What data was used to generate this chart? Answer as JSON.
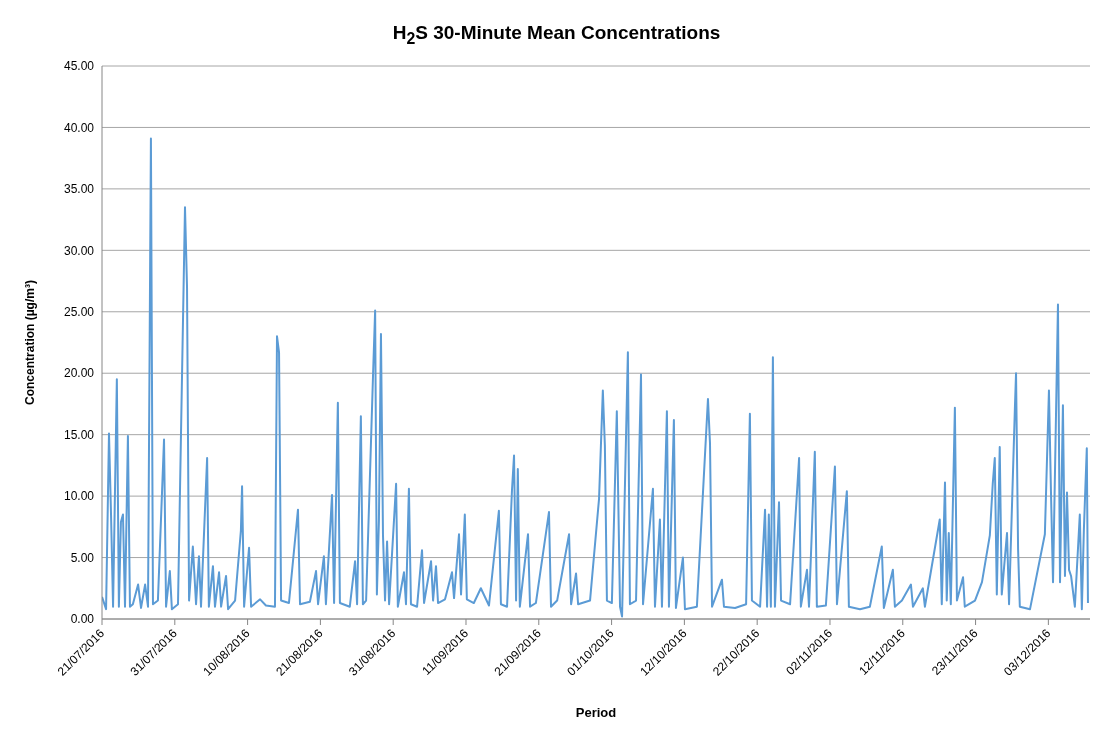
{
  "chart_data": {
    "type": "line",
    "title": "H$_{2}$S 30-Minute Mean Concentrations",
    "xlabel": "Period",
    "ylabel": "Concentration (µg/m³)",
    "x": [
      "2016-07-21T00:00",
      "2016-07-21T14:00",
      "2016-07-22T00:00",
      "2016-07-22T07:00",
      "2016-07-22T14:00",
      "2016-07-23T03:00",
      "2016-07-23T10:00",
      "2016-07-23T17:00",
      "2016-07-24T00:00",
      "2016-07-24T07:00",
      "2016-07-24T17:00",
      "2016-07-25T00:00",
      "2016-07-25T10:00",
      "2016-07-26T04:00",
      "2016-07-26T14:00",
      "2016-07-27T04:00",
      "2016-07-27T14:00",
      "2016-07-28T00:00",
      "2016-07-28T07:00",
      "2016-07-29T00:00",
      "2016-07-29T21:00",
      "2016-07-30T04:00",
      "2016-07-30T17:00",
      "2016-07-31T00:00",
      "2016-07-31T21:00",
      "2016-08-01T21:00",
      "2016-08-02T04:00",
      "2016-08-02T11:00",
      "2016-08-03T00:00",
      "2016-08-03T11:00",
      "2016-08-03T21:00",
      "2016-08-04T04:00",
      "2016-08-05T01:00",
      "2016-08-05T07:00",
      "2016-08-05T21:00",
      "2016-08-06T04:00",
      "2016-08-06T18:00",
      "2016-08-07T01:00",
      "2016-08-07T18:00",
      "2016-08-08T01:00",
      "2016-08-09T01:00",
      "2016-08-09T21:00",
      "2016-08-10T01:00",
      "2016-08-10T08:00",
      "2016-08-11T01:00",
      "2016-08-11T08:00",
      "2016-08-12T15:00",
      "2016-08-13T11:00",
      "2016-08-14T18:00",
      "2016-08-15T01:00",
      "2016-08-15T08:00",
      "2016-08-15T15:00",
      "2016-08-16T18:00",
      "2016-08-18T01:00",
      "2016-08-18T08:00",
      "2016-08-19T18:00",
      "2016-08-20T15:00",
      "2016-08-20T22:00",
      "2016-08-21T18:00",
      "2016-08-22T01:00",
      "2016-08-22T22:00",
      "2016-08-23T05:00",
      "2016-08-23T18:00",
      "2016-08-24T01:00",
      "2016-08-25T11:00",
      "2016-08-26T05:00",
      "2016-08-26T12:00",
      "2016-08-27T01:00",
      "2016-08-27T08:00",
      "2016-08-27T19:00",
      "2016-08-28T19:00",
      "2016-08-29T02:00",
      "2016-08-29T08:00",
      "2016-08-29T15:00",
      "2016-08-29T22:00",
      "2016-08-30T05:00",
      "2016-08-30T12:00",
      "2016-08-30T19:00",
      "2016-08-31T02:00",
      "2016-09-01T02:00",
      "2016-09-01T08:00",
      "2016-09-02T05:00",
      "2016-09-02T12:00",
      "2016-09-02T22:00",
      "2016-09-03T05:00",
      "2016-09-04T02:00",
      "2016-09-04T19:00",
      "2016-09-05T02:00",
      "2016-09-06T02:00",
      "2016-09-06T09:00",
      "2016-09-06T19:00",
      "2016-09-07T02:00",
      "2016-09-08T02:00",
      "2016-09-09T02:00",
      "2016-09-09T09:00",
      "2016-09-10T02:00",
      "2016-09-10T09:00",
      "2016-09-10T22:00",
      "2016-09-11T05:00",
      "2016-09-12T05:00",
      "2016-09-13T05:00",
      "2016-09-14T09:00",
      "2016-09-15T19:00",
      "2016-09-16T02:00",
      "2016-09-16T23:00",
      "2016-09-17T16:00",
      "2016-09-17T23:00",
      "2016-09-18T06:00",
      "2016-09-18T12:00",
      "2016-09-18T19:00",
      "2016-09-19T23:00",
      "2016-09-20T06:00",
      "2016-09-21T02:00",
      "2016-09-22T23:00",
      "2016-09-23T06:00",
      "2016-09-24T03:00",
      "2016-09-25T20:00",
      "2016-09-26T03:00",
      "2016-09-26T20:00",
      "2016-09-27T03:00",
      "2016-09-28T20:00",
      "2016-09-30T03:00",
      "2016-09-30T16:00",
      "2016-09-30T23:00",
      "2016-10-01T06:00",
      "2016-10-01T23:00",
      "2016-10-02T16:00",
      "2016-10-03T03:00",
      "2016-10-03T10:00",
      "2016-10-04T06:00",
      "2016-10-04T13:00",
      "2016-10-05T10:00",
      "2016-10-06T03:00",
      "2016-10-06T10:00",
      "2016-10-07T20:00",
      "2016-10-08T03:00",
      "2016-10-08T20:00",
      "2016-10-09T03:00",
      "2016-10-09T20:00",
      "2016-10-10T03:00",
      "2016-10-10T20:00",
      "2016-10-11T03:00",
      "2016-10-12T03:00",
      "2016-10-12T10:00",
      "2016-10-14T03:00",
      "2016-10-15T17:00",
      "2016-10-16T00:00",
      "2016-10-16T07:00",
      "2016-10-17T17:00",
      "2016-10-18T00:00",
      "2016-10-19T14:00",
      "2016-10-21T04:00",
      "2016-10-21T17:00",
      "2016-10-22T00:00",
      "2016-10-23T04:00",
      "2016-10-23T21:00",
      "2016-10-24T04:00",
      "2016-10-24T10:00",
      "2016-10-24T17:00",
      "2016-10-25T00:00",
      "2016-10-25T07:00",
      "2016-10-25T21:00",
      "2016-10-26T04:00",
      "2016-10-27T11:00",
      "2016-10-28T18:00",
      "2016-10-29T00:00",
      "2016-10-29T21:00",
      "2016-10-30T04:00",
      "2016-10-31T00:00",
      "2016-10-31T07:00",
      "2016-11-01T14:00",
      "2016-11-02T21:00",
      "2016-11-03T04:00",
      "2016-11-04T14:00",
      "2016-11-04T21:00",
      "2016-11-06T11:00",
      "2016-11-07T21:00",
      "2016-11-09T14:00",
      "2016-11-09T21:00",
      "2016-11-11T04:00",
      "2016-11-11T11:00",
      "2016-11-12T11:00",
      "2016-11-13T18:00",
      "2016-11-14T01:00",
      "2016-11-15T11:00",
      "2016-11-15T18:00",
      "2016-11-17T21:00",
      "2016-11-18T04:00",
      "2016-11-18T15:00",
      "2016-11-18T21:00",
      "2016-11-19T04:00",
      "2016-11-19T11:00",
      "2016-11-20T01:00",
      "2016-11-20T08:00",
      "2016-11-21T05:00",
      "2016-11-21T11:00",
      "2016-11-22T22:00",
      "2016-11-23T22:00",
      "2016-11-25T01:00",
      "2016-11-25T11:00",
      "2016-11-25T18:00",
      "2016-11-26T01:00",
      "2016-11-26T11:00",
      "2016-11-26T18:00",
      "2016-11-27T12:00",
      "2016-11-27T19:00",
      "2016-11-28T15:00",
      "2016-11-28T19:00",
      "2016-11-29T02:00",
      "2016-11-29T08:00",
      "2016-11-30T19:00",
      "2016-12-02T22:00",
      "2016-12-03T12:00",
      "2016-12-03T19:00",
      "2016-12-04T02:00",
      "2016-12-04T19:00",
      "2016-12-05T02:00",
      "2016-12-05T12:00",
      "2016-12-05T19:00",
      "2016-12-06T02:00",
      "2016-12-06T09:00",
      "2016-12-06T16:00",
      "2016-12-07T05:00",
      "2016-12-07T22:00",
      "2016-12-08T05:00",
      "2016-12-08T12:00",
      "2016-12-08T22:00",
      "2016-12-09T02:00"
    ],
    "series": [
      {
        "color": "#5b9bd5",
        "values": [
          1.8,
          0.8,
          15.1,
          8.5,
          1.0,
          19.5,
          1.0,
          7.9,
          8.5,
          1.0,
          14.9,
          1.0,
          1.2,
          2.8,
          0.9,
          2.8,
          1.0,
          39.1,
          1.2,
          1.5,
          14.6,
          1.0,
          3.9,
          0.8,
          1.2,
          33.5,
          27.0,
          1.5,
          5.9,
          1.2,
          5.1,
          1.0,
          13.1,
          1.0,
          4.3,
          1.0,
          3.8,
          1.0,
          3.5,
          0.8,
          1.5,
          7.2,
          10.8,
          1.0,
          5.8,
          1.0,
          1.6,
          1.1,
          1.0,
          23.0,
          21.7,
          1.5,
          1.3,
          8.9,
          1.2,
          1.4,
          3.9,
          1.2,
          5.1,
          1.2,
          10.1,
          1.3,
          17.6,
          1.3,
          1.0,
          4.7,
          1.2,
          16.5,
          1.2,
          1.5,
          20.0,
          25.1,
          2.0,
          8.0,
          23.2,
          6.8,
          1.5,
          6.3,
          1.2,
          11.0,
          1.0,
          3.8,
          1.2,
          10.6,
          1.2,
          1.0,
          5.6,
          1.3,
          4.7,
          1.5,
          4.3,
          1.3,
          1.6,
          3.8,
          1.7,
          6.9,
          2.0,
          8.5,
          1.6,
          1.3,
          2.5,
          1.1,
          8.8,
          1.2,
          1.0,
          10.5,
          13.3,
          1.5,
          12.2,
          1.0,
          6.9,
          1.0,
          1.3,
          8.7,
          1.0,
          1.5,
          6.9,
          1.2,
          3.7,
          1.2,
          1.5,
          9.8,
          18.6,
          14.1,
          1.5,
          1.3,
          16.9,
          1.0,
          0.2,
          21.7,
          1.2,
          1.5,
          19.9,
          1.2,
          10.6,
          1.0,
          8.1,
          1.0,
          16.9,
          1.0,
          16.2,
          0.9,
          5.0,
          0.8,
          1.0,
          17.9,
          14.3,
          1.0,
          3.2,
          1.0,
          0.9,
          1.2,
          16.7,
          1.5,
          1.0,
          8.9,
          1.0,
          8.5,
          1.0,
          21.3,
          1.0,
          9.5,
          1.5,
          1.2,
          13.1,
          1.0,
          4.0,
          1.0,
          13.6,
          1.0,
          1.1,
          12.4,
          1.2,
          10.4,
          1.0,
          0.8,
          1.0,
          5.9,
          0.9,
          4.0,
          1.0,
          1.5,
          2.8,
          1.0,
          2.5,
          1.0,
          8.1,
          1.2,
          11.1,
          1.5,
          7.0,
          1.2,
          17.2,
          1.5,
          3.4,
          1.0,
          1.5,
          3.0,
          6.8,
          11.0,
          13.1,
          2.0,
          14.0,
          2.0,
          7.0,
          1.2,
          17.1,
          20.0,
          5.7,
          1.0,
          0.8,
          6.9,
          18.6,
          10.3,
          3.0,
          25.6,
          3.0,
          17.4,
          3.5,
          10.3,
          4.0,
          3.5,
          1.0,
          8.5,
          0.8,
          7.3,
          13.9,
          1.3
        ]
      }
    ],
    "xlim": [
      "2016-07-21T00:00",
      "2016-12-09T09:00"
    ],
    "xticks": [
      {
        "value": "2016-07-21T00:00",
        "label": "21/07/2016"
      },
      {
        "value": "2016-07-31T10:00",
        "label": "31/07/2016"
      },
      {
        "value": "2016-08-10T20:00",
        "label": "10/08/2016"
      },
      {
        "value": "2016-08-21T06:00",
        "label": "21/08/2016"
      },
      {
        "value": "2016-08-31T16:00",
        "label": "31/08/2016"
      },
      {
        "value": "2016-09-11T02:00",
        "label": "11/09/2016"
      },
      {
        "value": "2016-09-21T12:00",
        "label": "21/09/2016"
      },
      {
        "value": "2016-10-01T22:00",
        "label": "01/10/2016"
      },
      {
        "value": "2016-10-12T08:00",
        "label": "12/10/2016"
      },
      {
        "value": "2016-10-22T18:00",
        "label": "22/10/2016"
      },
      {
        "value": "2016-11-02T04:00",
        "label": "02/11/2016"
      },
      {
        "value": "2016-11-12T14:00",
        "label": "12/11/2016"
      },
      {
        "value": "2016-11-23T00:00",
        "label": "23/11/2016"
      },
      {
        "value": "2016-12-03T10:00",
        "label": "03/12/2016"
      }
    ],
    "ylim": [
      0,
      45
    ],
    "yticks": [
      {
        "value": 0,
        "label": "0.00"
      },
      {
        "value": 5,
        "label": "5.00"
      },
      {
        "value": 10,
        "label": "10.00"
      },
      {
        "value": 15,
        "label": "15.00"
      },
      {
        "value": 20,
        "label": "20.00"
      },
      {
        "value": 25,
        "label": "25.00"
      },
      {
        "value": 30,
        "label": "30.00"
      },
      {
        "value": 35,
        "label": "35.00"
      },
      {
        "value": 40,
        "label": "40.00"
      },
      {
        "value": 45,
        "label": "45.00"
      }
    ],
    "grid": "y",
    "marker": "none",
    "line_style": "solid"
  }
}
